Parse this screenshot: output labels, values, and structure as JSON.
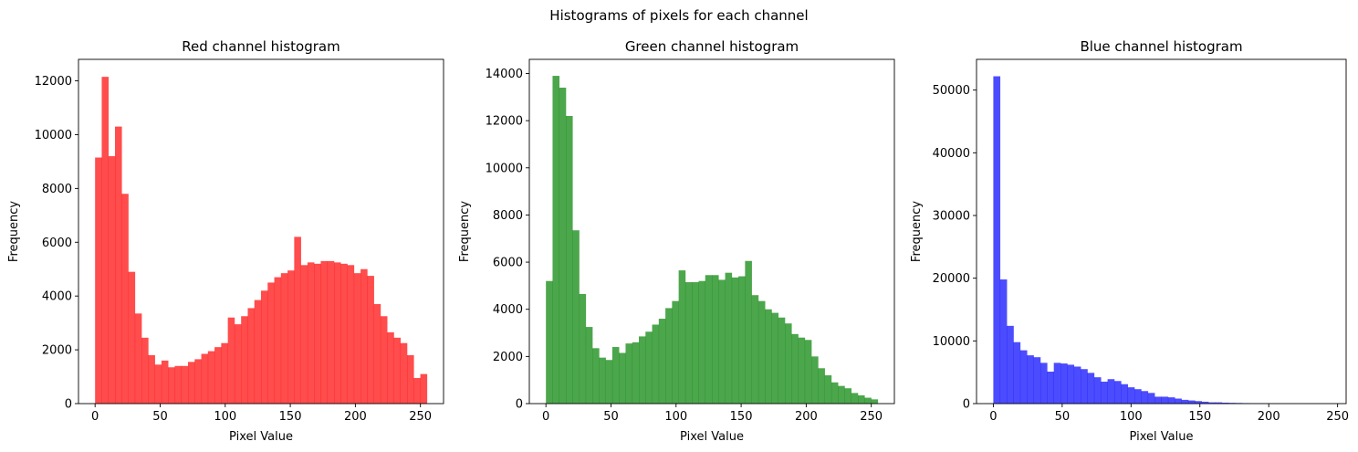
{
  "figure": {
    "suptitle": "Histograms of pixels for each channel"
  },
  "chart_data": [
    {
      "type": "bar",
      "title": "Red channel histogram",
      "xlabel": "Pixel Value",
      "ylabel": "Frequency",
      "color": "#ff0000",
      "alpha": 0.7,
      "xlim": [
        -12.75,
        267.75
      ],
      "ylim": [
        0,
        12800
      ],
      "xticks": [
        0,
        50,
        100,
        150,
        200,
        250
      ],
      "yticks": [
        0,
        2000,
        4000,
        6000,
        8000,
        10000,
        12000
      ],
      "bin_start": 0,
      "bin_end": 255,
      "bins": 50,
      "values": [
        9150,
        12150,
        9200,
        10300,
        7800,
        4900,
        3350,
        2450,
        1800,
        1450,
        1600,
        1350,
        1400,
        1400,
        1550,
        1650,
        1850,
        1950,
        2100,
        2250,
        3200,
        2950,
        3250,
        3550,
        3850,
        4200,
        4500,
        4700,
        4850,
        4950,
        6200,
        5150,
        5250,
        5200,
        5300,
        5300,
        5250,
        5200,
        5150,
        4850,
        5000,
        4750,
        3700,
        3250,
        2650,
        2450,
        2250,
        1800,
        950,
        1100
      ]
    },
    {
      "type": "bar",
      "title": "Green channel histogram",
      "xlabel": "Pixel Value",
      "ylabel": "Frequency",
      "color": "#008000",
      "alpha": 0.7,
      "xlim": [
        -12.75,
        267.75
      ],
      "ylim": [
        0,
        14600
      ],
      "xticks": [
        0,
        50,
        100,
        150,
        200,
        250
      ],
      "yticks": [
        0,
        2000,
        4000,
        6000,
        8000,
        10000,
        12000,
        14000
      ],
      "bin_start": 0,
      "bin_end": 255,
      "bins": 50,
      "values": [
        5200,
        13900,
        13400,
        12200,
        7350,
        4650,
        3250,
        2350,
        1950,
        1850,
        2400,
        2150,
        2550,
        2600,
        2850,
        3050,
        3350,
        3600,
        4050,
        4350,
        5650,
        5150,
        5150,
        5200,
        5450,
        5450,
        5250,
        5550,
        5350,
        5400,
        6050,
        4600,
        4350,
        4000,
        3850,
        3650,
        3400,
        2950,
        2800,
        2700,
        2000,
        1500,
        1200,
        900,
        750,
        650,
        450,
        350,
        250,
        180
      ]
    },
    {
      "type": "bar",
      "title": "Blue channel histogram",
      "xlabel": "Pixel Value",
      "ylabel": "Frequency",
      "color": "#0000ff",
      "alpha": 0.7,
      "xlim": [
        -12.2,
        256.2
      ],
      "ylim": [
        0,
        54900
      ],
      "xticks": [
        0,
        50,
        100,
        150,
        200,
        250
      ],
      "yticks": [
        0,
        10000,
        20000,
        30000,
        40000,
        50000
      ],
      "bin_start": 0,
      "bin_end": 244,
      "bins": 50,
      "values": [
        52200,
        19800,
        12400,
        9800,
        8500,
        7700,
        7400,
        6500,
        5100,
        6500,
        6400,
        6200,
        5900,
        5500,
        4900,
        4200,
        3500,
        3900,
        3600,
        3100,
        2600,
        2300,
        2000,
        1700,
        1100,
        1100,
        1000,
        800,
        600,
        500,
        400,
        300,
        200,
        200,
        150,
        120,
        100,
        80,
        60,
        50,
        30,
        25,
        20,
        15,
        10,
        8,
        6,
        4,
        2,
        1
      ]
    }
  ]
}
